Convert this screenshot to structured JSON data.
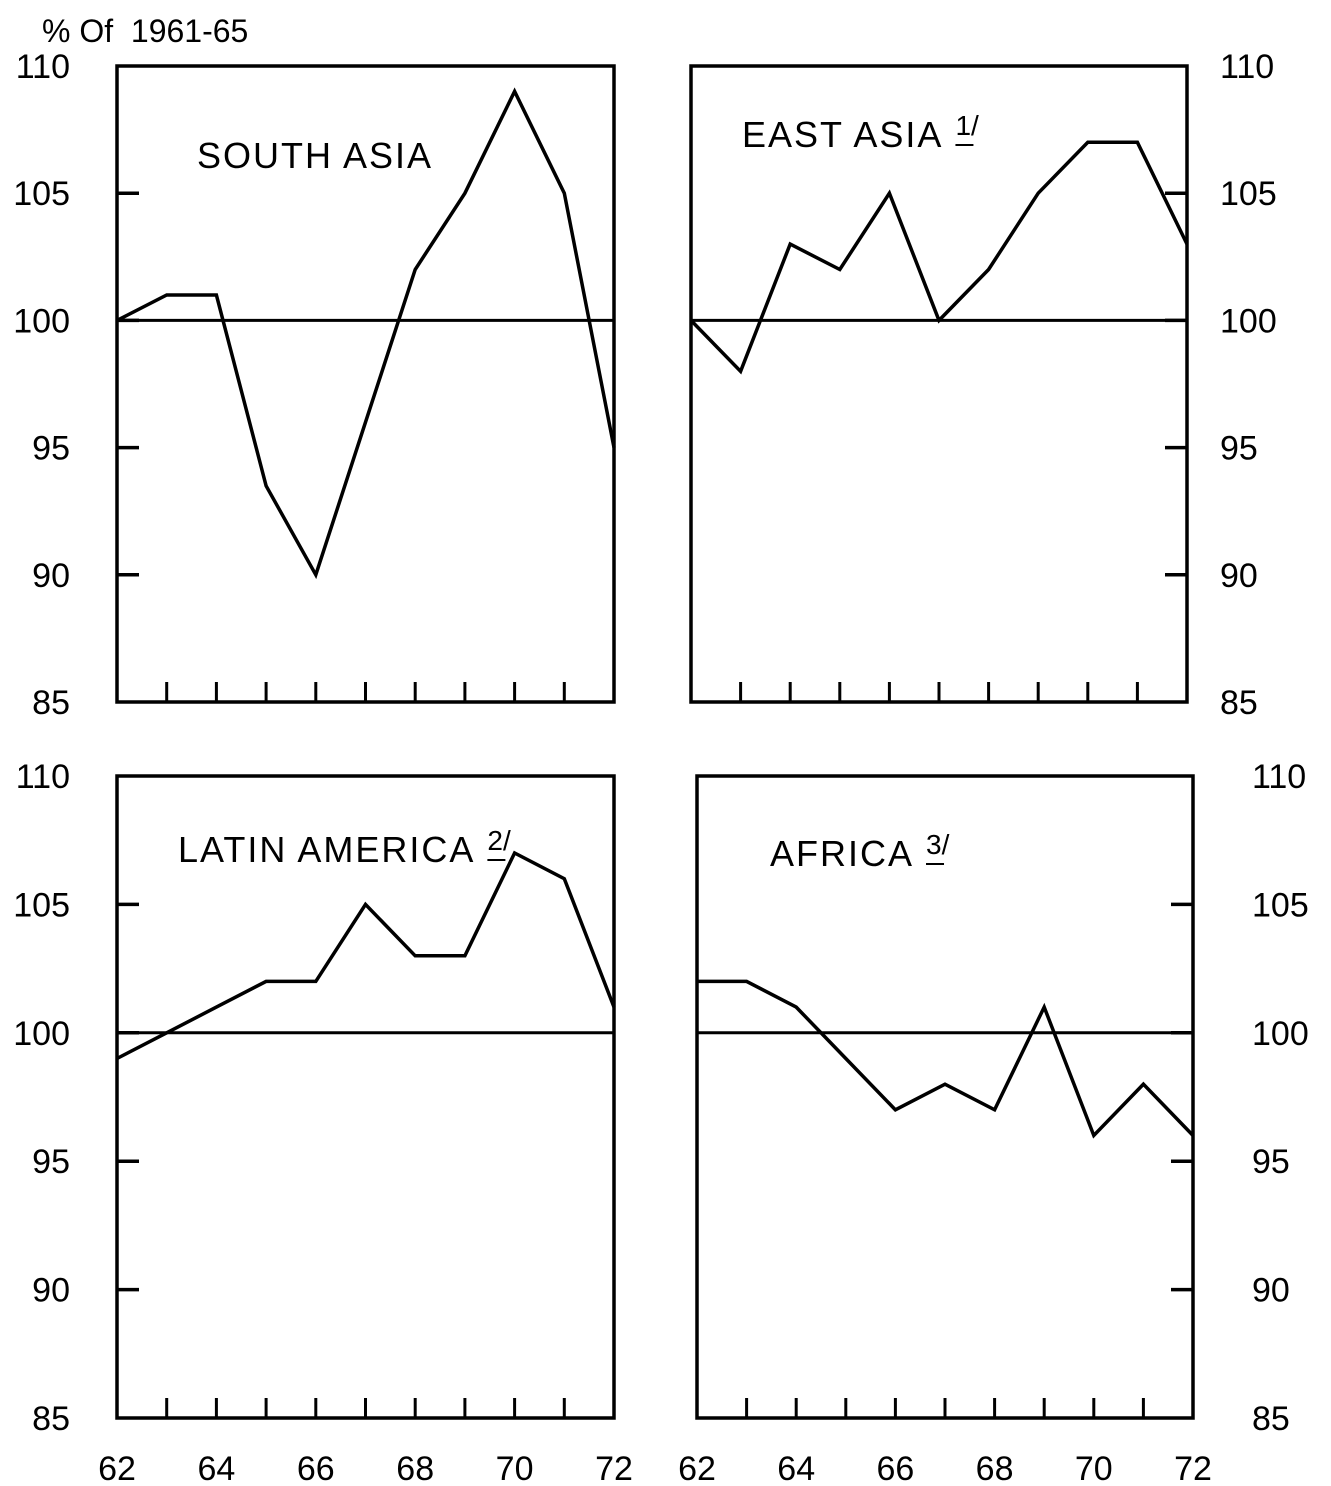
{
  "unit_label": "% Of  1961-65",
  "chart_data": [
    {
      "type": "line",
      "title": "SOUTH ASIA",
      "footnote": "",
      "xlabel": "",
      "ylabel": "",
      "x": [
        62,
        63,
        64,
        65,
        66,
        67,
        68,
        69,
        70,
        71,
        72
      ],
      "series": [
        {
          "values": [
            100,
            101,
            101,
            93.5,
            90,
            96,
            102,
            105,
            109,
            105,
            95
          ]
        }
      ],
      "ylim": [
        85,
        110
      ],
      "xlim": [
        62,
        72
      ],
      "y_ticks": [
        85,
        90,
        95,
        100,
        105,
        110
      ],
      "x_ticks": [
        62,
        64,
        66,
        68,
        70,
        72
      ],
      "reference_line": 100,
      "show_x_tick_labels": false,
      "y_tick_side": "left",
      "grid": false
    },
    {
      "type": "line",
      "title": "EAST ASIA",
      "footnote": "1/",
      "xlabel": "",
      "ylabel": "",
      "x": [
        62,
        63,
        64,
        65,
        66,
        67,
        68,
        69,
        70,
        71,
        72
      ],
      "series": [
        {
          "values": [
            100,
            98,
            103,
            102,
            105,
            100,
            102,
            105,
            107,
            107,
            103
          ]
        }
      ],
      "ylim": [
        85,
        110
      ],
      "xlim": [
        62,
        72
      ],
      "y_ticks": [
        85,
        90,
        95,
        100,
        105,
        110
      ],
      "x_ticks": [
        62,
        64,
        66,
        68,
        70,
        72
      ],
      "reference_line": 100,
      "show_x_tick_labels": false,
      "y_tick_side": "right",
      "grid": false
    },
    {
      "type": "line",
      "title": "LATIN AMERICA",
      "footnote": "2/",
      "xlabel": "",
      "ylabel": "",
      "x": [
        62,
        63,
        64,
        65,
        66,
        67,
        68,
        69,
        70,
        71,
        72
      ],
      "series": [
        {
          "values": [
            99,
            100,
            101,
            102,
            102,
            105,
            103,
            103,
            107,
            106,
            101
          ]
        }
      ],
      "ylim": [
        85,
        110
      ],
      "xlim": [
        62,
        72
      ],
      "y_ticks": [
        85,
        90,
        95,
        100,
        105,
        110
      ],
      "x_ticks": [
        62,
        64,
        66,
        68,
        70,
        72
      ],
      "reference_line": 100,
      "show_x_tick_labels": true,
      "y_tick_side": "left",
      "grid": false
    },
    {
      "type": "line",
      "title": "AFRICA",
      "footnote": "3/",
      "xlabel": "",
      "ylabel": "",
      "x": [
        62,
        63,
        64,
        65,
        66,
        67,
        68,
        69,
        70,
        71,
        72
      ],
      "series": [
        {
          "values": [
            102,
            102,
            101,
            99,
            97,
            98,
            97,
            101,
            96,
            98,
            96
          ]
        }
      ],
      "ylim": [
        85,
        110
      ],
      "xlim": [
        62,
        72
      ],
      "y_ticks": [
        85,
        90,
        95,
        100,
        105,
        110
      ],
      "x_ticks": [
        62,
        64,
        66,
        68,
        70,
        72
      ],
      "reference_line": 100,
      "show_x_tick_labels": true,
      "y_tick_side": "right",
      "grid": false
    }
  ]
}
